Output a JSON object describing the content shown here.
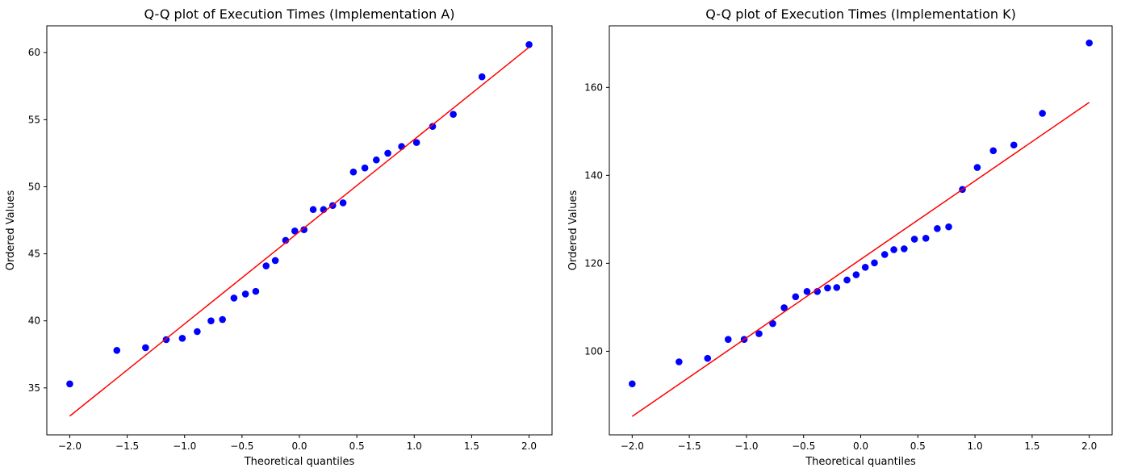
{
  "chart_data": [
    {
      "type": "scatter",
      "title": "Q-Q plot of Execution Times (Implementation A)",
      "xlabel": "Theoretical quantiles",
      "ylabel": "Ordered Values",
      "xlim": [
        -2.2,
        2.2
      ],
      "ylim": [
        31.5,
        62
      ],
      "xticks": [
        -2.0,
        -1.5,
        -1.0,
        -0.5,
        0.0,
        0.5,
        1.0,
        1.5,
        2.0
      ],
      "xtick_labels": [
        "−2.0",
        "−1.5",
        "−1.0",
        "−0.5",
        "0.0",
        "0.5",
        "1.0",
        "1.5",
        "2.0"
      ],
      "yticks": [
        35,
        40,
        45,
        50,
        55,
        60
      ],
      "ytick_labels": [
        "35",
        "40",
        "45",
        "50",
        "55",
        "60"
      ],
      "grid": false,
      "marker_color": "#0000ff",
      "line_color": "#ff0000",
      "fit_line": {
        "x": [
          -2.0,
          2.0
        ],
        "y": [
          32.9,
          60.4
        ]
      },
      "series": [
        {
          "x": [
            -2.0,
            -1.59,
            -1.34,
            -1.16,
            -1.02,
            -0.89,
            -0.77,
            -0.67,
            -0.57,
            -0.47,
            -0.38,
            -0.29,
            -0.21,
            -0.12,
            -0.04,
            0.04,
            0.12,
            0.21,
            0.29,
            0.38,
            0.47,
            0.57,
            0.67,
            0.77,
            0.89,
            1.02,
            1.16,
            1.34,
            1.59,
            2.0
          ],
          "y": [
            35.3,
            37.8,
            38.0,
            38.6,
            38.7,
            39.2,
            40.0,
            40.1,
            41.7,
            42.0,
            42.2,
            44.1,
            44.5,
            46.0,
            46.7,
            46.8,
            48.3,
            48.3,
            48.6,
            48.8,
            51.1,
            51.4,
            52.0,
            52.5,
            53.0,
            53.3,
            54.5,
            55.4,
            58.2,
            60.6
          ]
        }
      ]
    },
    {
      "type": "scatter",
      "title": "Q-Q plot of Execution Times (Implementation K)",
      "xlabel": "Theoretical quantiles",
      "ylabel": "Ordered Values",
      "xlim": [
        -2.2,
        2.2
      ],
      "ylim": [
        81,
        174
      ],
      "xticks": [
        -2.0,
        -1.5,
        -1.0,
        -0.5,
        0.0,
        0.5,
        1.0,
        1.5,
        2.0
      ],
      "xtick_labels": [
        "−2.0",
        "−1.5",
        "−1.0",
        "−0.5",
        "0.0",
        "0.5",
        "1.0",
        "1.5",
        "2.0"
      ],
      "yticks": [
        100,
        120,
        140,
        160
      ],
      "ytick_labels": [
        "100",
        "120",
        "140",
        "160"
      ],
      "grid": false,
      "marker_color": "#0000ff",
      "line_color": "#ff0000",
      "fit_line": {
        "x": [
          -2.0,
          2.0
        ],
        "y": [
          85.2,
          156.6
        ]
      },
      "series": [
        {
          "x": [
            -2.0,
            -1.59,
            -1.34,
            -1.16,
            -1.02,
            -0.89,
            -0.77,
            -0.67,
            -0.57,
            -0.47,
            -0.38,
            -0.29,
            -0.21,
            -0.12,
            -0.04,
            0.04,
            0.12,
            0.21,
            0.29,
            0.38,
            0.47,
            0.57,
            0.67,
            0.77,
            0.89,
            1.02,
            1.16,
            1.34,
            1.59,
            2.0
          ],
          "y": [
            92.6,
            97.6,
            98.4,
            102.7,
            102.7,
            104.0,
            106.3,
            109.9,
            112.4,
            113.6,
            113.6,
            114.4,
            114.5,
            116.2,
            117.4,
            119.1,
            120.1,
            122.0,
            123.1,
            123.3,
            125.5,
            125.7,
            127.9,
            128.3,
            136.8,
            141.8,
            145.6,
            146.9,
            154.1,
            170.1
          ]
        }
      ]
    }
  ]
}
